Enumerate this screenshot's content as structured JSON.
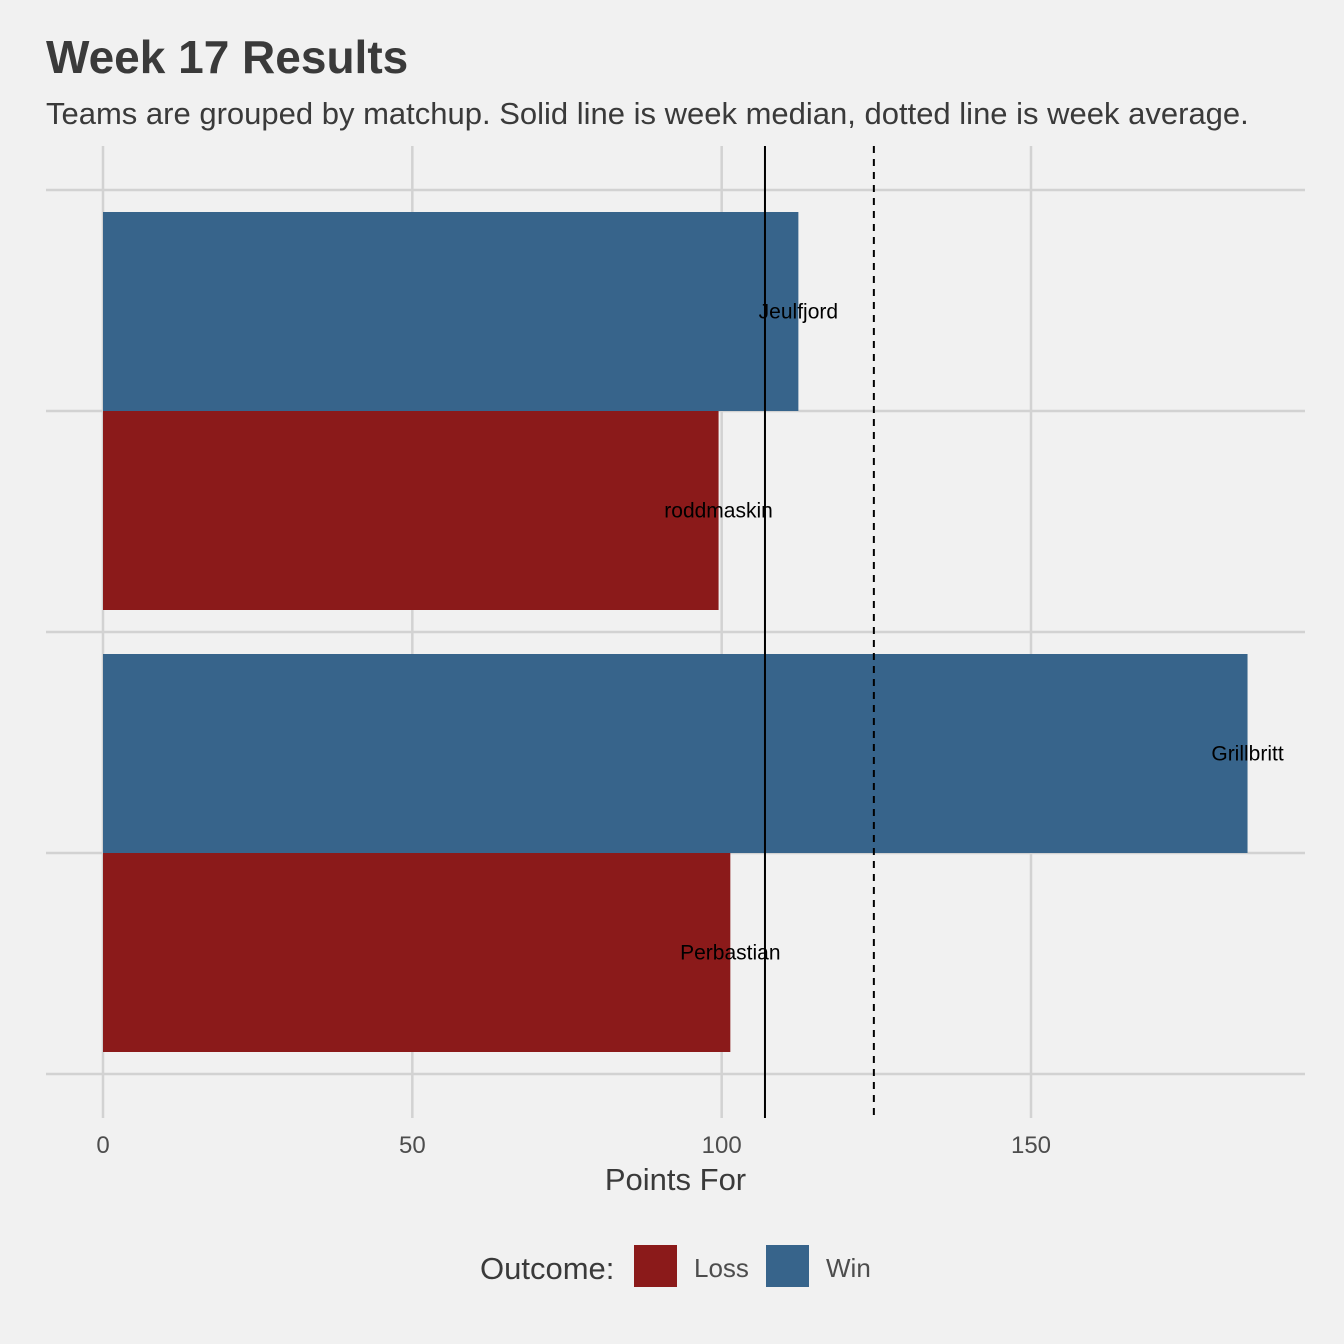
{
  "chart_data": {
    "type": "bar",
    "orientation": "horizontal",
    "title": "Week 17 Results",
    "subtitle": "Teams are grouped by matchup. Solid line is week median, dotted line is week average.",
    "xlabel": "Points For",
    "ylabel": "",
    "xlim": [
      0,
      195
    ],
    "x_ticks": [
      0,
      50,
      100,
      150
    ],
    "grid": true,
    "bars": [
      {
        "team": "Jeulfjord",
        "points": 112.4,
        "outcome": "Win",
        "matchup": 1
      },
      {
        "team": "roddmaskin",
        "points": 99.5,
        "outcome": "Loss",
        "matchup": 1
      },
      {
        "team": "Grillbritt",
        "points": 185.0,
        "outcome": "Win",
        "matchup": 2
      },
      {
        "team": "Perbastian",
        "points": 101.4,
        "outcome": "Loss",
        "matchup": 2
      }
    ],
    "reference_lines": {
      "median": 107.0,
      "average": 124.6
    },
    "legend": {
      "title": "Outcome:",
      "placement": "bottom",
      "entries": [
        {
          "label": "Loss",
          "color": "#8b1a1a"
        },
        {
          "label": "Win",
          "color": "#37648b"
        }
      ]
    },
    "colors": {
      "Win": "#37648b",
      "Loss": "#8b1a1a",
      "background": "#f1f1f1",
      "grid": "#d2d2d2"
    }
  }
}
